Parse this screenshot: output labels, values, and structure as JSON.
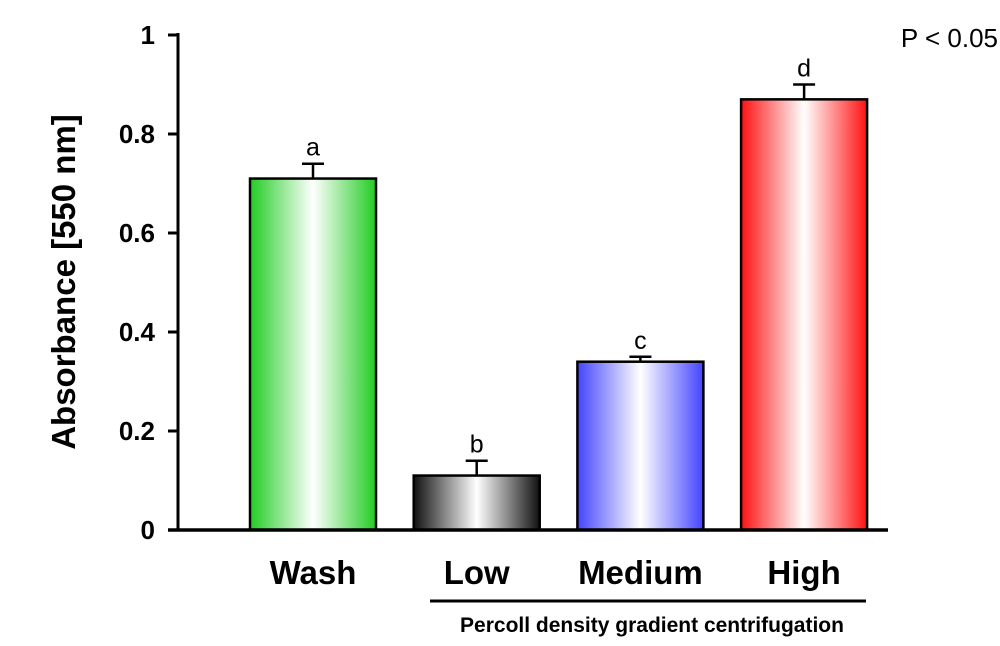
{
  "chart_data": {
    "type": "bar",
    "title": "",
    "xlabel": "",
    "ylabel": "Absorbance [550 nm]",
    "ylim": [
      0,
      1
    ],
    "yticks": [
      0,
      0.2,
      0.4,
      0.6,
      0.8,
      1
    ],
    "ytick_labels": [
      "0",
      "0.2",
      "0.4",
      "0.6",
      "0.8",
      "1"
    ],
    "categories": [
      "Wash",
      "Low",
      "Medium",
      "High"
    ],
    "values": [
      0.71,
      0.11,
      0.34,
      0.87
    ],
    "errors": [
      0.03,
      0.03,
      0.01,
      0.03
    ],
    "significance_letters": [
      "a",
      "b",
      "c",
      "d"
    ],
    "colors": [
      "#22cc22",
      "#111111",
      "#4444ff",
      "#ff1111"
    ],
    "group_label": "Percoll density gradient centrifugation",
    "annotation": "P < 0.05",
    "grid": false
  }
}
